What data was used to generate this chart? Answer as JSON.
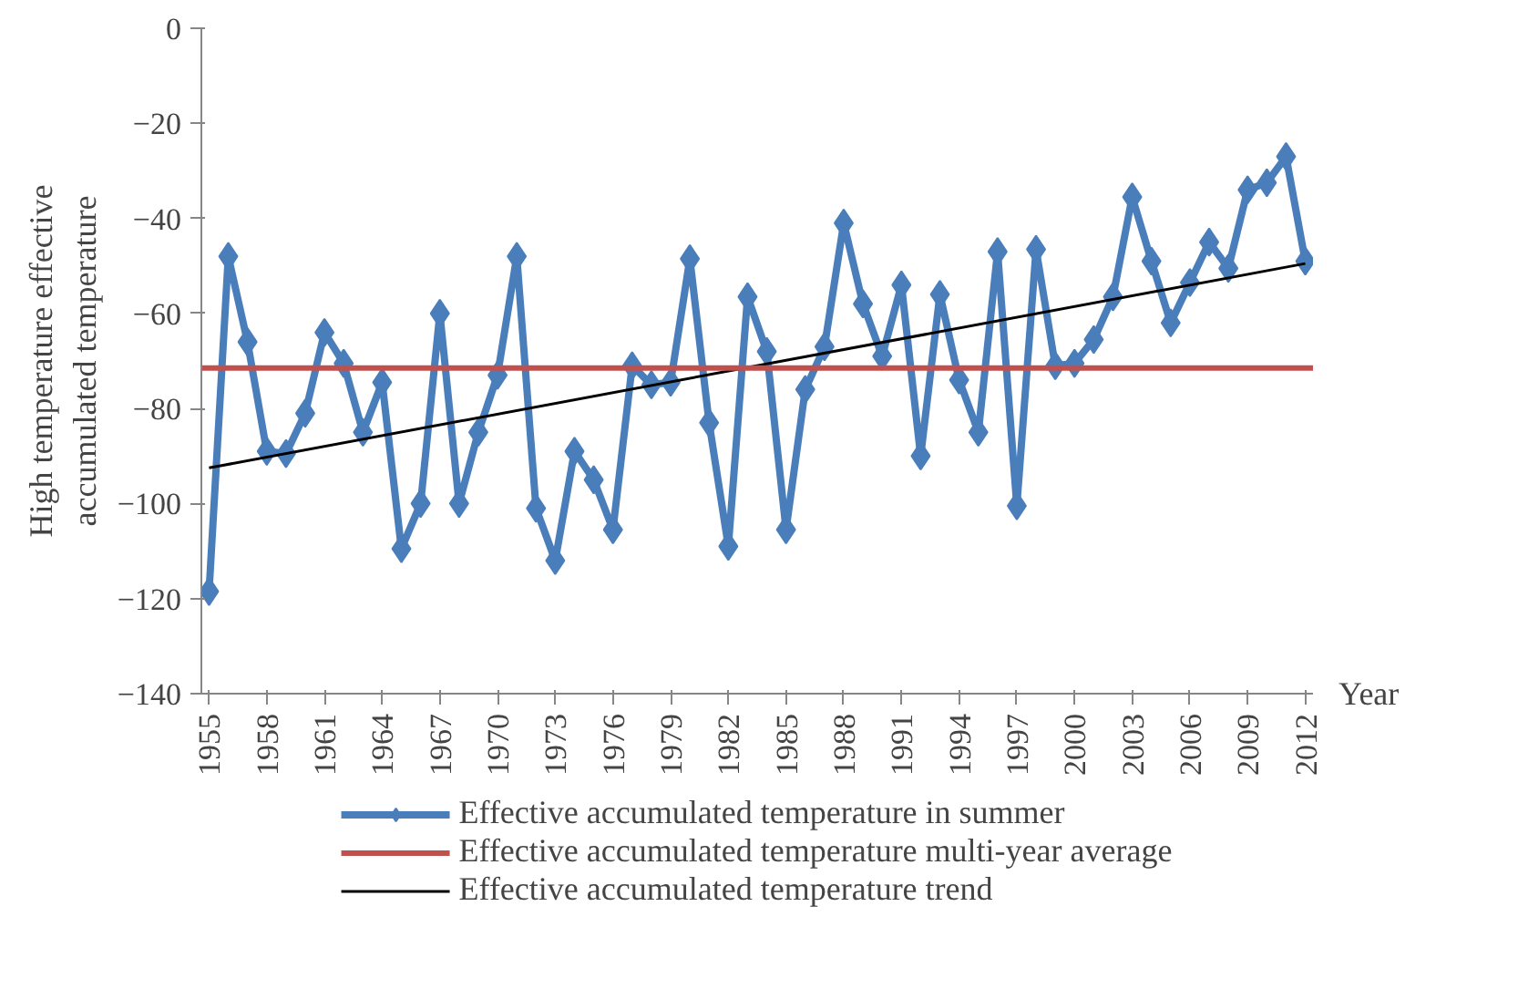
{
  "chart_data": {
    "type": "line",
    "xlabel": "Year",
    "ylabel": "High temperature effective\naccumulated temperature",
    "x": [
      1955,
      1956,
      1957,
      1958,
      1959,
      1960,
      1961,
      1962,
      1963,
      1964,
      1965,
      1966,
      1967,
      1968,
      1969,
      1970,
      1971,
      1972,
      1973,
      1974,
      1975,
      1976,
      1977,
      1978,
      1979,
      1980,
      1981,
      1982,
      1983,
      1984,
      1985,
      1986,
      1987,
      1988,
      1989,
      1990,
      1991,
      1992,
      1993,
      1994,
      1995,
      1996,
      1997,
      1998,
      1999,
      2000,
      2001,
      2002,
      2003,
      2004,
      2005,
      2006,
      2007,
      2008,
      2009,
      2010,
      2011,
      2012
    ],
    "series": [
      {
        "name": "Effective accumulated temperature in summer",
        "color": "#4a7ebb",
        "marker": "diamond",
        "values": [
          -118.5,
          -48,
          -66,
          -89,
          -89.5,
          -81,
          -64,
          -70.5,
          -85,
          -74.5,
          -109.5,
          -100,
          -60,
          -100,
          -85,
          -73,
          -48,
          -101,
          -112,
          -89,
          -95,
          -105.5,
          -71,
          -75,
          -74.5,
          -48.5,
          -83,
          -109,
          -56.5,
          -68,
          -105.5,
          -76,
          -67,
          -41,
          -58,
          -69,
          -54,
          -90,
          -56,
          -74,
          -85,
          -47,
          -100.5,
          -46.5,
          -71,
          -70.5,
          -65.5,
          -56.5,
          -35.5,
          -49,
          -62,
          -53.5,
          -45,
          -50.5,
          -34,
          -32.5,
          -27,
          -49
        ]
      },
      {
        "name": "Effective accumulated temperature trend",
        "color": "#000000",
        "marker": "none",
        "x": [
          1955,
          2012
        ],
        "values": [
          -92.5,
          -49.5
        ]
      }
    ],
    "xlim": [
      1954.6,
      2012.4
    ],
    "xticks": [
      1955,
      1958,
      1961,
      1964,
      1967,
      1970,
      1973,
      1976,
      1979,
      1982,
      1985,
      1988,
      1991,
      1994,
      1997,
      2000,
      2003,
      2006,
      2009,
      2012
    ],
    "ylim": [
      -140,
      0
    ],
    "yticks": [
      -140,
      -120,
      -100,
      -80,
      -60,
      -40,
      -20,
      0
    ],
    "ref_lines": [
      {
        "axis": "y",
        "value": -71.5,
        "label": "Effective accumulated temperature multi-year average",
        "color": "#c0504d",
        "line_style": "solid"
      }
    ],
    "grid": false,
    "legend": "bottom"
  }
}
